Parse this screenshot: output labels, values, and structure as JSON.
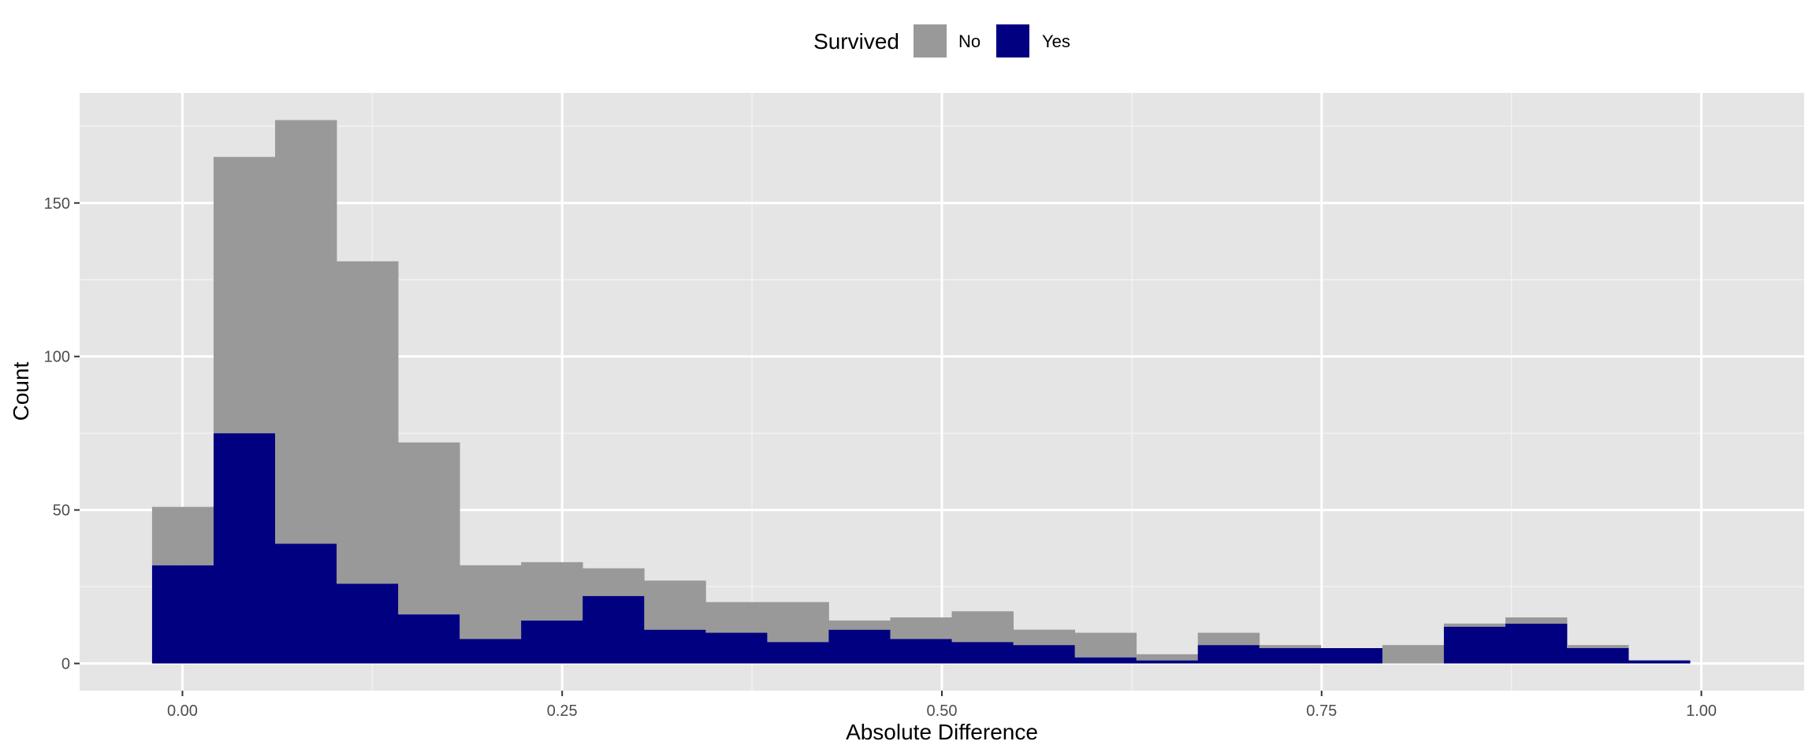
{
  "chart_data": {
    "type": "bar",
    "subtype": "stacked-histogram",
    "title": "",
    "xlabel": "Absolute Difference",
    "ylabel": "Count",
    "xlim": [
      -0.0677,
      1.0677
    ],
    "ylim": [
      -8.85,
      185.85
    ],
    "xticks": [
      0.0,
      0.25,
      0.5,
      0.75,
      1.0
    ],
    "xtick_labels": [
      "0.00",
      "0.25",
      "0.50",
      "0.75",
      "1.00"
    ],
    "yticks": [
      0,
      50,
      100,
      150
    ],
    "ytick_labels": [
      "0",
      "50",
      "100",
      "150"
    ],
    "grid": true,
    "legend": {
      "title": "Survived",
      "position": "top",
      "entries": [
        {
          "label": "No",
          "color": "#999999"
        },
        {
          "label": "Yes",
          "color": "#000080"
        }
      ]
    },
    "bin_width": 0.0405,
    "bin_start": -0.02,
    "series": [
      {
        "name": "Yes",
        "color": "#000080",
        "values": [
          32,
          75,
          39,
          26,
          16,
          8,
          14,
          22,
          11,
          10,
          7,
          11,
          8,
          7,
          6,
          2,
          1,
          6,
          5,
          5,
          0,
          12,
          13,
          5,
          1
        ]
      },
      {
        "name": "No",
        "color": "#999999",
        "values": [
          19,
          90,
          138,
          105,
          56,
          24,
          19,
          9,
          16,
          10,
          13,
          3,
          7,
          10,
          5,
          8,
          2,
          4,
          1,
          0,
          6,
          1,
          2,
          1,
          0
        ]
      }
    ],
    "totals": [
      51,
      165,
      177,
      131,
      72,
      32,
      33,
      31,
      27,
      20,
      20,
      14,
      15,
      17,
      11,
      10,
      3,
      10,
      6,
      5,
      6,
      13,
      15,
      6,
      1
    ]
  },
  "colors": {
    "panel_background": "#e5e5e5",
    "grid_major": "#ffffff",
    "grid_minor": "#f2f2f2",
    "tick_color": "#333333"
  }
}
